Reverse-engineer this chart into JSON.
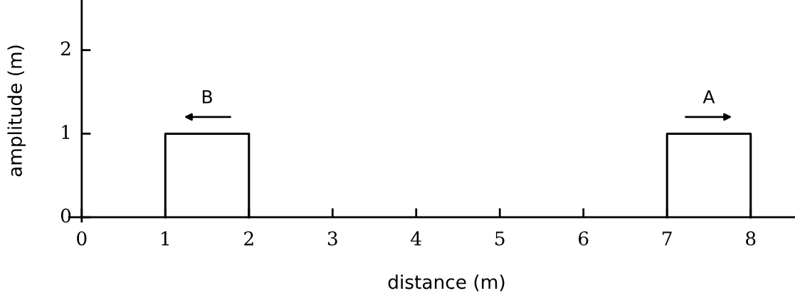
{
  "chart_data": {
    "type": "line",
    "xlabel": "distance (m)",
    "ylabel": "amplitude (m)",
    "series": [
      {
        "name": "B",
        "color": "#000000",
        "x": [
          1,
          1,
          2,
          2
        ],
        "values": [
          0,
          1,
          1,
          0
        ]
      },
      {
        "name": "A",
        "color": "#000000",
        "x": [
          7,
          7,
          8,
          8
        ],
        "values": [
          0,
          1,
          1,
          0
        ]
      }
    ],
    "xlim": [
      -0.15,
      8.53
    ],
    "ylim": [
      -0.05,
      2.6
    ],
    "xticks": [
      0,
      1,
      2,
      3,
      4,
      5,
      6,
      7,
      8
    ],
    "yticks": [
      0,
      1,
      2
    ],
    "grid": false,
    "marker": "none",
    "line_style": "solid"
  }
}
